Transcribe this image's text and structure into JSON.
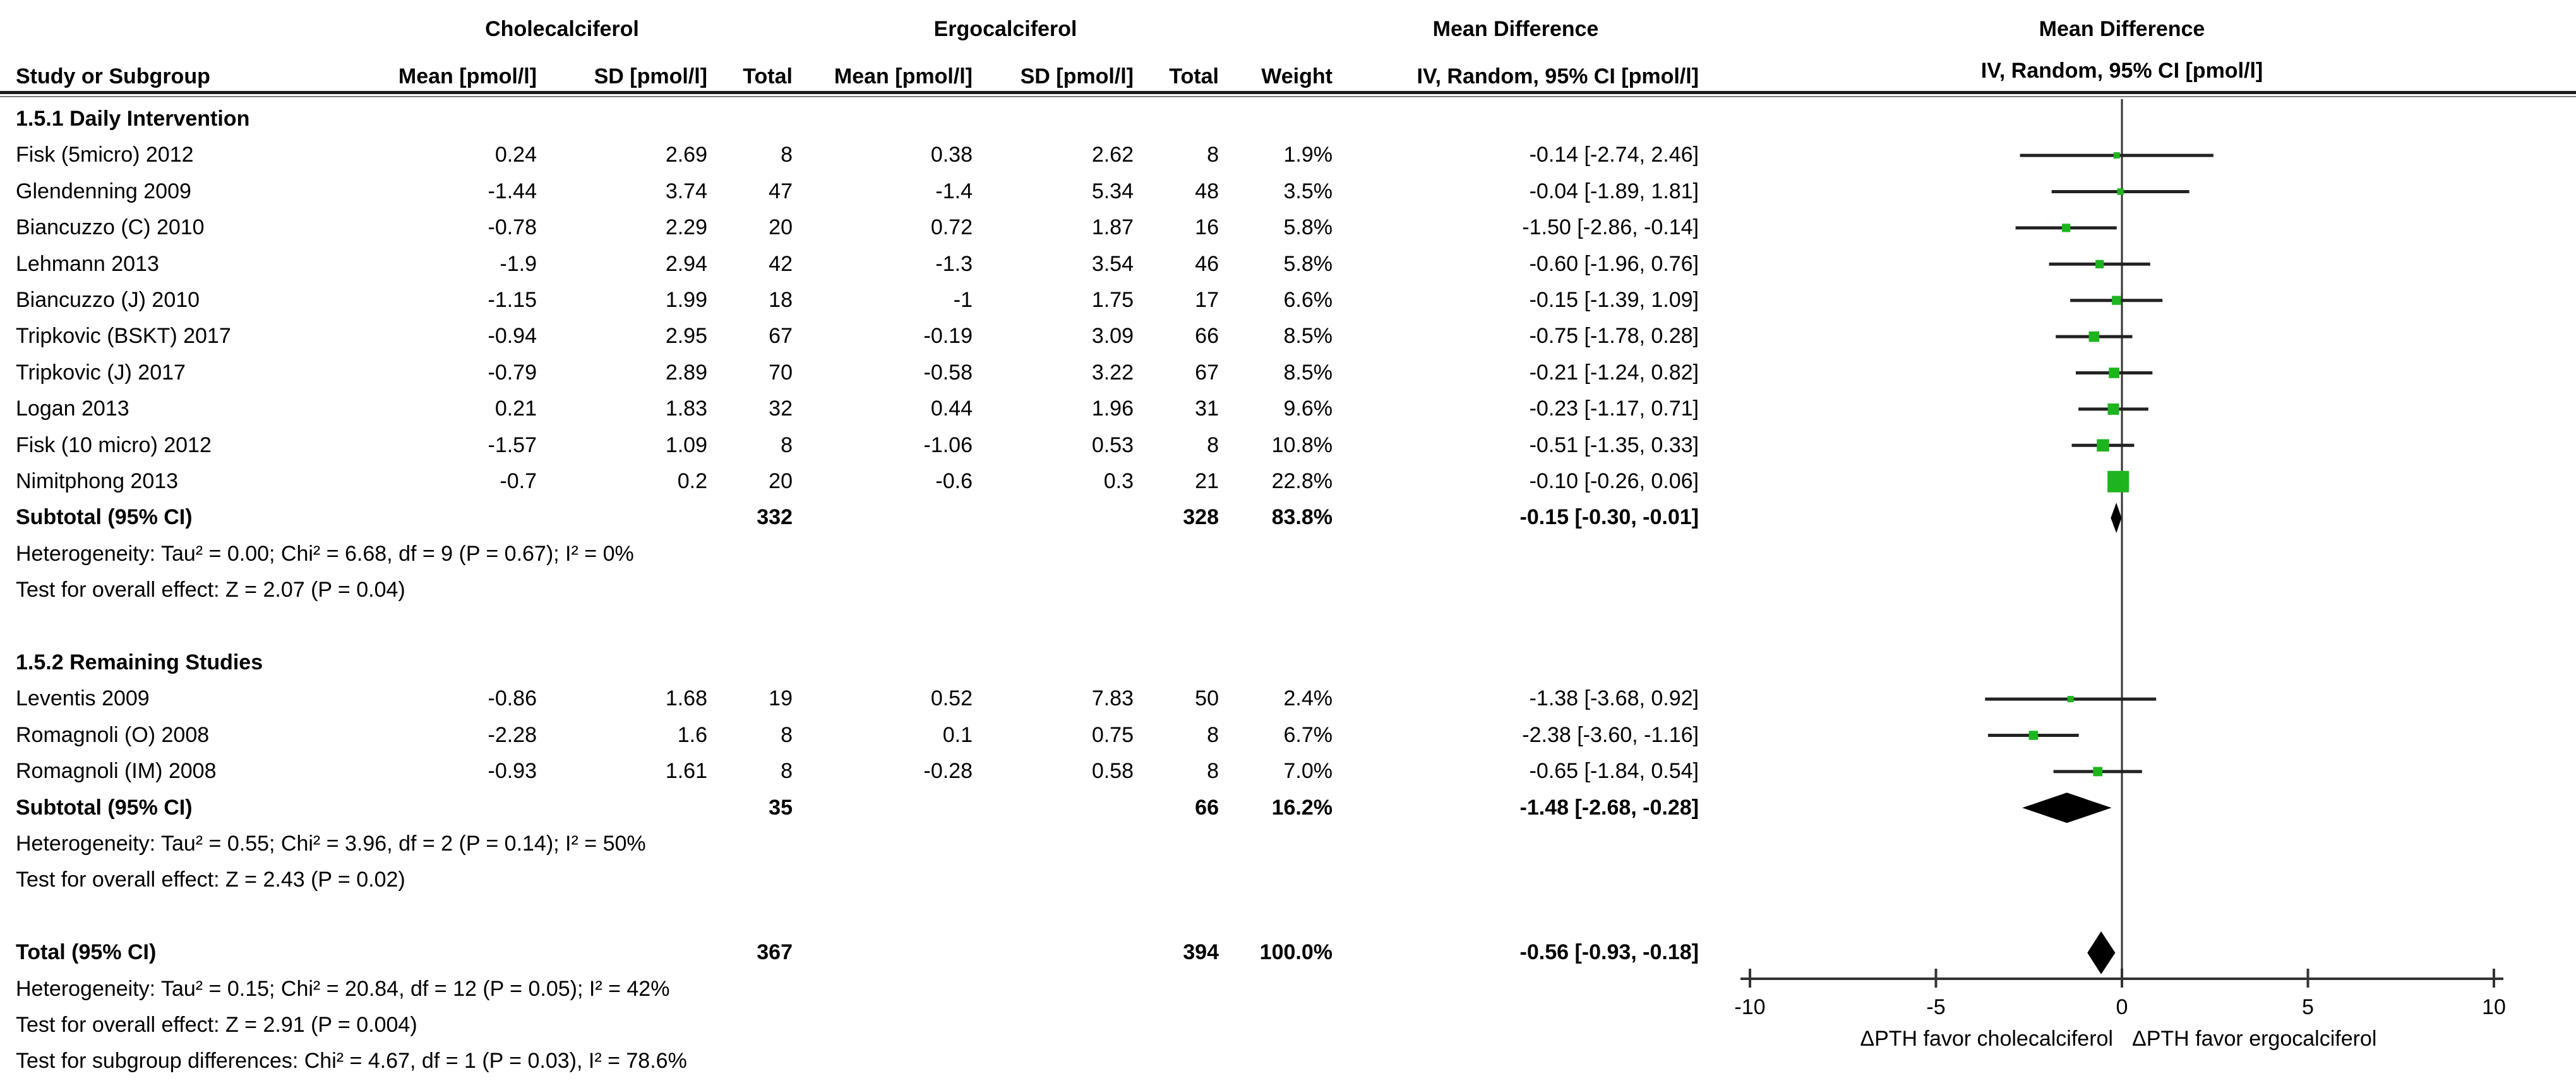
{
  "header": {
    "group1": "Cholecalciferol",
    "group2": "Ergocalciferol",
    "md_text_col_title": "Mean Difference",
    "md_text_col_sub": "IV, Random, 95% CI [pmol/l]",
    "plot_col_title": "Mean Difference",
    "plot_col_sub": "IV, Random, 95% CI [pmol/l]",
    "columns": {
      "study": "Study or Subgroup",
      "mean1": "Mean [pmol/l]",
      "sd1": "SD [pmol/l]",
      "total1": "Total",
      "mean2": "Mean [pmol/l]",
      "sd2": "SD [pmol/l]",
      "total2": "Total",
      "weight": "Weight",
      "md": "IV, Random, 95% CI [pmol/l]"
    }
  },
  "chart_data": {
    "type": "scatter",
    "variant": "forest-plot",
    "title": "Mean Difference, IV, Random, 95% CI [pmol/l]",
    "x_axis": {
      "min": -10,
      "max": 10,
      "ticks": [
        -10,
        -5,
        0,
        5,
        10
      ],
      "caption_left": "ΔPTH favor cholecalciferol",
      "caption_right": "ΔPTH favor ergocalciferol"
    },
    "marker_color": "#1eb41e",
    "diamond_color": "#000000",
    "line_color": "#222222",
    "rows": [
      {
        "kind": "subgroup",
        "label": "1.5.1 Daily Intervention"
      },
      {
        "kind": "study",
        "label": "Fisk (5micro) 2012",
        "mean1": "0.24",
        "sd1": "2.69",
        "total1": "8",
        "mean2": "0.38",
        "sd2": "2.62",
        "total2": "8",
        "weight": "1.9%",
        "md_text": "-0.14 [-2.74, 2.46]",
        "md": -0.14,
        "lo": -2.74,
        "hi": 2.46,
        "w": 1.9
      },
      {
        "kind": "study",
        "label": "Glendenning 2009",
        "mean1": "-1.44",
        "sd1": "3.74",
        "total1": "47",
        "mean2": "-1.4",
        "sd2": "5.34",
        "total2": "48",
        "weight": "3.5%",
        "md_text": "-0.04 [-1.89, 1.81]",
        "md": -0.04,
        "lo": -1.89,
        "hi": 1.81,
        "w": 3.5
      },
      {
        "kind": "study",
        "label": "Biancuzzo (C) 2010",
        "mean1": "-0.78",
        "sd1": "2.29",
        "total1": "20",
        "mean2": "0.72",
        "sd2": "1.87",
        "total2": "16",
        "weight": "5.8%",
        "md_text": "-1.50 [-2.86, -0.14]",
        "md": -1.5,
        "lo": -2.86,
        "hi": -0.14,
        "w": 5.8
      },
      {
        "kind": "study",
        "label": "Lehmann 2013",
        "mean1": "-1.9",
        "sd1": "2.94",
        "total1": "42",
        "mean2": "-1.3",
        "sd2": "3.54",
        "total2": "46",
        "weight": "5.8%",
        "md_text": "-0.60 [-1.96, 0.76]",
        "md": -0.6,
        "lo": -1.96,
        "hi": 0.76,
        "w": 5.8
      },
      {
        "kind": "study",
        "label": "Biancuzzo (J) 2010",
        "mean1": "-1.15",
        "sd1": "1.99",
        "total1": "18",
        "mean2": "-1",
        "sd2": "1.75",
        "total2": "17",
        "weight": "6.6%",
        "md_text": "-0.15 [-1.39, 1.09]",
        "md": -0.15,
        "lo": -1.39,
        "hi": 1.09,
        "w": 6.6
      },
      {
        "kind": "study",
        "label": "Tripkovic (BSKT) 2017",
        "mean1": "-0.94",
        "sd1": "2.95",
        "total1": "67",
        "mean2": "-0.19",
        "sd2": "3.09",
        "total2": "66",
        "weight": "8.5%",
        "md_text": "-0.75 [-1.78, 0.28]",
        "md": -0.75,
        "lo": -1.78,
        "hi": 0.28,
        "w": 8.5
      },
      {
        "kind": "study",
        "label": "Tripkovic (J) 2017",
        "mean1": "-0.79",
        "sd1": "2.89",
        "total1": "70",
        "mean2": "-0.58",
        "sd2": "3.22",
        "total2": "67",
        "weight": "8.5%",
        "md_text": "-0.21 [-1.24, 0.82]",
        "md": -0.21,
        "lo": -1.24,
        "hi": 0.82,
        "w": 8.5
      },
      {
        "kind": "study",
        "label": "Logan 2013",
        "mean1": "0.21",
        "sd1": "1.83",
        "total1": "32",
        "mean2": "0.44",
        "sd2": "1.96",
        "total2": "31",
        "weight": "9.6%",
        "md_text": "-0.23 [-1.17, 0.71]",
        "md": -0.23,
        "lo": -1.17,
        "hi": 0.71,
        "w": 9.6
      },
      {
        "kind": "study",
        "label": "Fisk (10 micro) 2012",
        "mean1": "-1.57",
        "sd1": "1.09",
        "total1": "8",
        "mean2": "-1.06",
        "sd2": "0.53",
        "total2": "8",
        "weight": "10.8%",
        "md_text": "-0.51 [-1.35, 0.33]",
        "md": -0.51,
        "lo": -1.35,
        "hi": 0.33,
        "w": 10.8
      },
      {
        "kind": "study",
        "label": "Nimitphong 2013",
        "mean1": "-0.7",
        "sd1": "0.2",
        "total1": "20",
        "mean2": "-0.6",
        "sd2": "0.3",
        "total2": "21",
        "weight": "22.8%",
        "md_text": "-0.10 [-0.26, 0.06]",
        "md": -0.1,
        "lo": -0.26,
        "hi": 0.06,
        "w": 22.8
      },
      {
        "kind": "subtotal",
        "label": "Subtotal (95% CI)",
        "total1": "332",
        "total2": "328",
        "weight": "83.8%",
        "md_text": "-0.15 [-0.30, -0.01]",
        "md": -0.15,
        "lo": -0.3,
        "hi": -0.01
      },
      {
        "kind": "note",
        "label": "Heterogeneity: Tau² = 0.00; Chi² = 6.68, df = 9 (P = 0.67); I² = 0%"
      },
      {
        "kind": "note",
        "label": "Test for overall effect: Z = 2.07 (P = 0.04)"
      },
      {
        "kind": "spacer",
        "label": ""
      },
      {
        "kind": "subgroup",
        "label": "1.5.2 Remaining Studies"
      },
      {
        "kind": "study",
        "label": "Leventis 2009",
        "mean1": "-0.86",
        "sd1": "1.68",
        "total1": "19",
        "mean2": "0.52",
        "sd2": "7.83",
        "total2": "50",
        "weight": "2.4%",
        "md_text": "-1.38 [-3.68, 0.92]",
        "md": -1.38,
        "lo": -3.68,
        "hi": 0.92,
        "w": 2.4
      },
      {
        "kind": "study",
        "label": "Romagnoli (O) 2008",
        "mean1": "-2.28",
        "sd1": "1.6",
        "total1": "8",
        "mean2": "0.1",
        "sd2": "0.75",
        "total2": "8",
        "weight": "6.7%",
        "md_text": "-2.38 [-3.60, -1.16]",
        "md": -2.38,
        "lo": -3.6,
        "hi": -1.16,
        "w": 6.7
      },
      {
        "kind": "study",
        "label": "Romagnoli (IM) 2008",
        "mean1": "-0.93",
        "sd1": "1.61",
        "total1": "8",
        "mean2": "-0.28",
        "sd2": "0.58",
        "total2": "8",
        "weight": "7.0%",
        "md_text": "-0.65 [-1.84, 0.54]",
        "md": -0.65,
        "lo": -1.84,
        "hi": 0.54,
        "w": 7.0
      },
      {
        "kind": "subtotal",
        "label": "Subtotal (95% CI)",
        "total1": "35",
        "total2": "66",
        "weight": "16.2%",
        "md_text": "-1.48 [-2.68, -0.28]",
        "md": -1.48,
        "lo": -2.68,
        "hi": -0.28
      },
      {
        "kind": "note",
        "label": "Heterogeneity: Tau² = 0.55; Chi² = 3.96, df = 2 (P = 0.14); I² = 50%"
      },
      {
        "kind": "note",
        "label": "Test for overall effect: Z = 2.43 (P = 0.02)"
      },
      {
        "kind": "spacer",
        "label": ""
      },
      {
        "kind": "total",
        "label": "Total (95% CI)",
        "total1": "367",
        "total2": "394",
        "weight": "100.0%",
        "md_text": "-0.56 [-0.93, -0.18]",
        "md": -0.56,
        "lo": -0.93,
        "hi": -0.18
      },
      {
        "kind": "note",
        "label": "Heterogeneity: Tau² = 0.15; Chi² = 20.84, df = 12 (P = 0.05); I² = 42%"
      },
      {
        "kind": "note",
        "label": "Test for overall effect: Z = 2.91 (P = 0.004)"
      },
      {
        "kind": "note",
        "label": "Test for subgroup differences: Chi² = 4.67, df = 1 (P = 0.03), I² = 78.6%"
      }
    ]
  }
}
